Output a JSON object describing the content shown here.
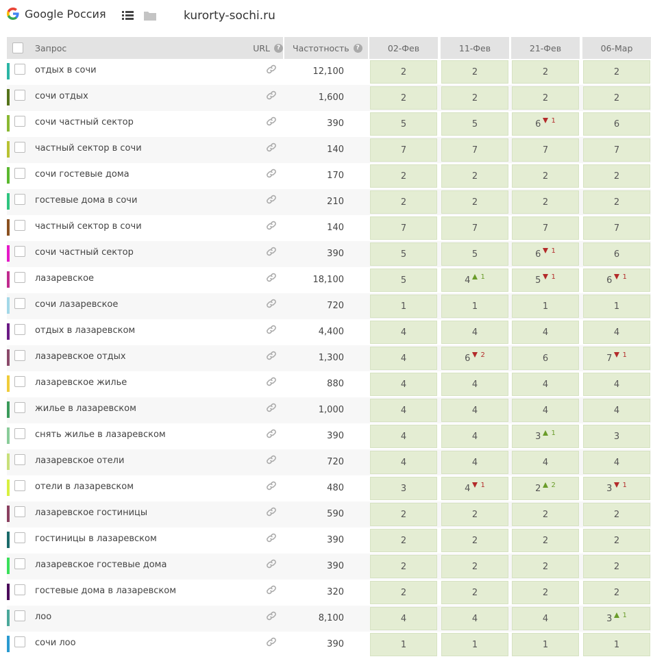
{
  "header": {
    "brand": "Google Россия",
    "site": "kurorty-sochi.ru"
  },
  "columns": {
    "query": "Запрос",
    "url": "URL",
    "url_help": "?",
    "freq": "Частотность",
    "freq_help": "?",
    "dates": [
      "02-Фев",
      "11-Фев",
      "21-Фев",
      "06-Мар"
    ]
  },
  "rows": [
    {
      "color": "#2bb5a5",
      "query": "отдых в сочи",
      "freq": "12,100",
      "pos": [
        {
          "v": "2"
        },
        {
          "v": "2"
        },
        {
          "v": "2"
        },
        {
          "v": "2"
        }
      ]
    },
    {
      "color": "#55731a",
      "query": "сочи отдых",
      "freq": "1,600",
      "pos": [
        {
          "v": "2"
        },
        {
          "v": "2"
        },
        {
          "v": "2"
        },
        {
          "v": "2"
        }
      ]
    },
    {
      "color": "#8ab832",
      "query": "сочи частный сектор",
      "freq": "390",
      "pos": [
        {
          "v": "5"
        },
        {
          "v": "5"
        },
        {
          "v": "6",
          "d": "dn",
          "n": "1"
        },
        {
          "v": "6"
        }
      ]
    },
    {
      "color": "#b8c232",
      "query": "частный сектор в сочи",
      "freq": "140",
      "pos": [
        {
          "v": "7"
        },
        {
          "v": "7"
        },
        {
          "v": "7"
        },
        {
          "v": "7"
        }
      ]
    },
    {
      "color": "#5bb82f",
      "query": "сочи гостевые дома",
      "freq": "170",
      "pos": [
        {
          "v": "2"
        },
        {
          "v": "2"
        },
        {
          "v": "2"
        },
        {
          "v": "2"
        }
      ]
    },
    {
      "color": "#2ec480",
      "query": "гостевые дома в сочи",
      "freq": "210",
      "pos": [
        {
          "v": "2"
        },
        {
          "v": "2"
        },
        {
          "v": "2"
        },
        {
          "v": "2"
        }
      ]
    },
    {
      "color": "#8a5020",
      "query": "частный сектор в сочи",
      "freq": "140",
      "pos": [
        {
          "v": "7"
        },
        {
          "v": "7"
        },
        {
          "v": "7"
        },
        {
          "v": "7"
        }
      ]
    },
    {
      "color": "#e619c8",
      "query": "сочи частный сектор",
      "freq": "390",
      "pos": [
        {
          "v": "5"
        },
        {
          "v": "5"
        },
        {
          "v": "6",
          "d": "dn",
          "n": "1"
        },
        {
          "v": "6"
        }
      ]
    },
    {
      "color": "#c02a8e",
      "query": "лазаревское",
      "freq": "18,100",
      "pos": [
        {
          "v": "5"
        },
        {
          "v": "4",
          "d": "up",
          "n": "1"
        },
        {
          "v": "5",
          "d": "dn",
          "n": "1"
        },
        {
          "v": "6",
          "d": "dn",
          "n": "1"
        }
      ]
    },
    {
      "color": "#a3d8e8",
      "query": "сочи лазаревское",
      "freq": "720",
      "pos": [
        {
          "v": "1"
        },
        {
          "v": "1"
        },
        {
          "v": "1"
        },
        {
          "v": "1"
        }
      ]
    },
    {
      "color": "#6a1a85",
      "query": "отдых в лазаревском",
      "freq": "4,400",
      "pos": [
        {
          "v": "4"
        },
        {
          "v": "4"
        },
        {
          "v": "4"
        },
        {
          "v": "4"
        }
      ]
    },
    {
      "color": "#8a4a6a",
      "query": "лазаревское отдых",
      "freq": "1,300",
      "pos": [
        {
          "v": "4"
        },
        {
          "v": "6",
          "d": "dn",
          "n": "2"
        },
        {
          "v": "6"
        },
        {
          "v": "7",
          "d": "dn",
          "n": "1"
        }
      ]
    },
    {
      "color": "#f0cc3a",
      "query": "лазаревское жилье",
      "freq": "880",
      "pos": [
        {
          "v": "4"
        },
        {
          "v": "4"
        },
        {
          "v": "4"
        },
        {
          "v": "4"
        }
      ]
    },
    {
      "color": "#3a9a5a",
      "query": "жилье в лазаревском",
      "freq": "1,000",
      "pos": [
        {
          "v": "4"
        },
        {
          "v": "4"
        },
        {
          "v": "4"
        },
        {
          "v": "4"
        }
      ]
    },
    {
      "color": "#8acc9a",
      "query": "снять жилье в лазаревском",
      "freq": "390",
      "pos": [
        {
          "v": "4"
        },
        {
          "v": "4"
        },
        {
          "v": "3",
          "d": "up",
          "n": "1"
        },
        {
          "v": "3"
        }
      ]
    },
    {
      "color": "#c8e07a",
      "query": "лазаревское отели",
      "freq": "720",
      "pos": [
        {
          "v": "4"
        },
        {
          "v": "4"
        },
        {
          "v": "4"
        },
        {
          "v": "4"
        }
      ]
    },
    {
      "color": "#d8f040",
      "query": "отели в лазаревском",
      "freq": "480",
      "pos": [
        {
          "v": "3"
        },
        {
          "v": "4",
          "d": "dn",
          "n": "1"
        },
        {
          "v": "2",
          "d": "up",
          "n": "2"
        },
        {
          "v": "3",
          "d": "dn",
          "n": "1"
        }
      ]
    },
    {
      "color": "#8a4060",
      "query": "лазаревское гостиницы",
      "freq": "590",
      "pos": [
        {
          "v": "2"
        },
        {
          "v": "2"
        },
        {
          "v": "2"
        },
        {
          "v": "2"
        }
      ]
    },
    {
      "color": "#1a6a6a",
      "query": "гостиницы в лазаревском",
      "freq": "390",
      "pos": [
        {
          "v": "2"
        },
        {
          "v": "2"
        },
        {
          "v": "2"
        },
        {
          "v": "2"
        }
      ]
    },
    {
      "color": "#3ae05a",
      "query": "лазаревское гостевые дома",
      "freq": "390",
      "pos": [
        {
          "v": "2"
        },
        {
          "v": "2"
        },
        {
          "v": "2"
        },
        {
          "v": "2"
        }
      ]
    },
    {
      "color": "#4a0a5a",
      "query": "гостевые дома в лазаревском",
      "freq": "320",
      "pos": [
        {
          "v": "2"
        },
        {
          "v": "2"
        },
        {
          "v": "2"
        },
        {
          "v": "2"
        }
      ]
    },
    {
      "color": "#4aa89a",
      "query": "лоо",
      "freq": "8,100",
      "pos": [
        {
          "v": "4"
        },
        {
          "v": "4"
        },
        {
          "v": "4"
        },
        {
          "v": "3",
          "d": "up",
          "n": "1"
        }
      ]
    },
    {
      "color": "#2a9ad0",
      "query": "сочи лоо",
      "freq": "390",
      "pos": [
        {
          "v": "1"
        },
        {
          "v": "1"
        },
        {
          "v": "1"
        },
        {
          "v": "1"
        }
      ]
    }
  ]
}
